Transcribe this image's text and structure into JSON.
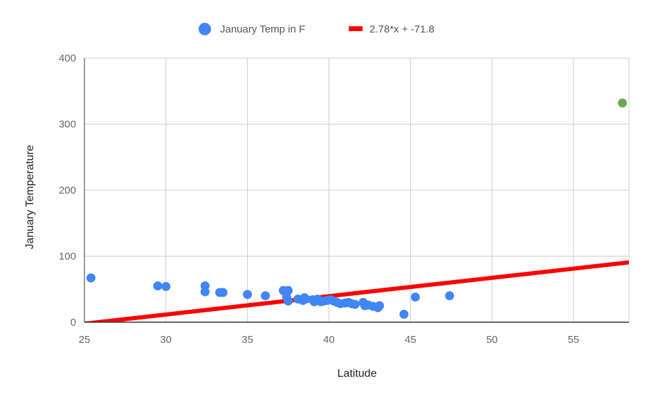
{
  "chart_data": {
    "type": "scatter",
    "title": "",
    "xlabel": "Latitude",
    "ylabel": "January Temperature",
    "xlim": [
      25,
      58.4
    ],
    "ylim": [
      0,
      400
    ],
    "x_ticks": [
      25,
      30,
      35,
      40,
      45,
      50,
      55
    ],
    "y_ticks": [
      0,
      100,
      200,
      300,
      400
    ],
    "grid": true,
    "legend_position": "top",
    "series": [
      {
        "name": "January Temp in F",
        "kind": "scatter",
        "color": "#4285f4",
        "points": [
          [
            25.4,
            67
          ],
          [
            29.5,
            55
          ],
          [
            30.0,
            54
          ],
          [
            32.4,
            55
          ],
          [
            32.4,
            46
          ],
          [
            33.3,
            45
          ],
          [
            33.5,
            45
          ],
          [
            35.0,
            42
          ],
          [
            36.1,
            40
          ],
          [
            37.2,
            48
          ],
          [
            37.5,
            48
          ],
          [
            37.4,
            38
          ],
          [
            37.5,
            32
          ],
          [
            38.1,
            35
          ],
          [
            38.4,
            33
          ],
          [
            38.5,
            37
          ],
          [
            38.6,
            35
          ],
          [
            39.0,
            34
          ],
          [
            39.1,
            31
          ],
          [
            39.3,
            35
          ],
          [
            39.5,
            31
          ],
          [
            39.7,
            32
          ],
          [
            39.9,
            33
          ],
          [
            40.1,
            34
          ],
          [
            40.3,
            32
          ],
          [
            40.5,
            30
          ],
          [
            40.7,
            28
          ],
          [
            41.0,
            29
          ],
          [
            41.2,
            30
          ],
          [
            41.4,
            28
          ],
          [
            41.6,
            27
          ],
          [
            42.1,
            30
          ],
          [
            42.2,
            25
          ],
          [
            42.4,
            26
          ],
          [
            42.7,
            24
          ],
          [
            43.0,
            22
          ],
          [
            43.1,
            25
          ],
          [
            44.6,
            12
          ],
          [
            45.3,
            38
          ],
          [
            47.4,
            40
          ]
        ]
      },
      {
        "name": "2.78*x + -71.8",
        "kind": "trendline",
        "color": "#ff0000",
        "slope": 2.78,
        "intercept": -71.8
      },
      {
        "name": "",
        "kind": "scatter",
        "color": "#6aa84f",
        "points": [
          [
            58.0,
            332
          ]
        ]
      }
    ]
  }
}
